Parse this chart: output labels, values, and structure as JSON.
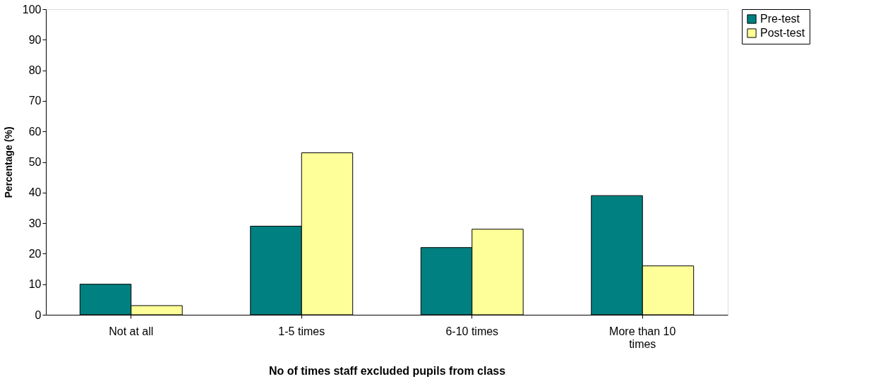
{
  "chart_data": {
    "type": "bar",
    "xlabel": "No of times staff excluded pupils from class",
    "ylabel": "Percentage (%)",
    "categories": [
      "Not at all",
      "1-5 times",
      "6-10 times",
      "More than 10 times"
    ],
    "series": [
      {
        "name": "Pre-test",
        "color": "#008080",
        "values": [
          10,
          29,
          22,
          39
        ]
      },
      {
        "name": "Post-test",
        "color": "#ffff99",
        "values": [
          3,
          53,
          28,
          16
        ]
      }
    ],
    "ylim": [
      0,
      100
    ],
    "yticks": [
      0,
      10,
      20,
      30,
      40,
      50,
      60,
      70,
      80,
      90,
      100
    ],
    "grid": false,
    "legend": "right"
  }
}
